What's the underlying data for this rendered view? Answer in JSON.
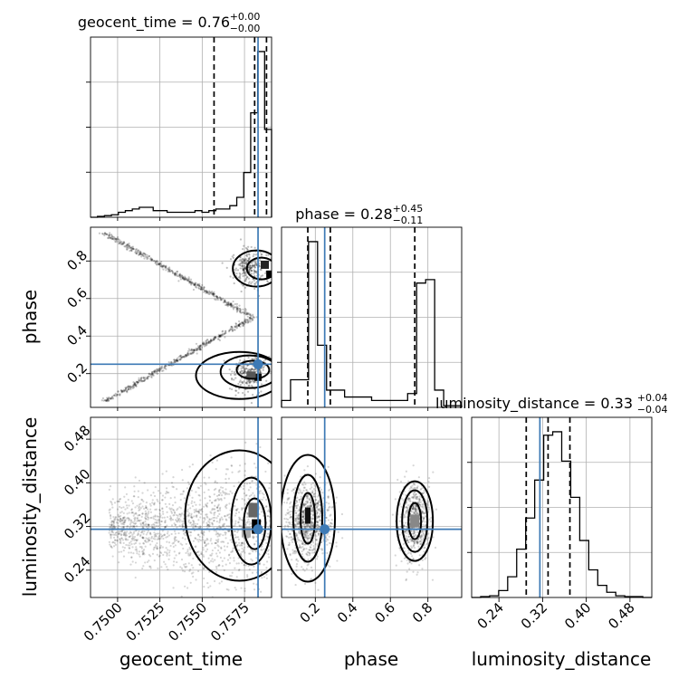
{
  "chart_data": {
    "type": "corner",
    "parameters": [
      "geocent_time",
      "phase",
      "luminosity_distance"
    ],
    "truths": {
      "geocent_time": 0.7583,
      "phase": 0.25,
      "luminosity_distance": 0.315
    },
    "axes": {
      "geocent_time": {
        "lim": [
          0.7484,
          0.7591
        ],
        "ticks": [
          "0.7500",
          "0.7525",
          "0.7550",
          "0.7575"
        ],
        "tick_values": [
          0.75,
          0.7525,
          0.755,
          0.7575
        ]
      },
      "phase": {
        "lim": [
          0.02,
          0.98
        ],
        "ticks": [
          "0.2",
          "0.4",
          "0.6",
          "0.8"
        ],
        "tick_values": [
          0.2,
          0.4,
          0.6,
          0.8
        ]
      },
      "luminosity_distance": {
        "lim": [
          0.19,
          0.52
        ],
        "ticks": [
          "0.24",
          "0.32",
          "0.40",
          "0.48"
        ],
        "tick_values": [
          0.24,
          0.32,
          0.4,
          0.48
        ]
      }
    },
    "titles": [
      {
        "param": "geocent_time",
        "text": "geocent_time = 0.76",
        "plus": "+0.00",
        "minus": "−0.00"
      },
      {
        "param": "phase",
        "text": "phase = 0.28",
        "plus": "+0.45",
        "minus": "−0.11"
      },
      {
        "param": "luminosity_distance",
        "text": "luminosity_distance = 0.33",
        "plus": "+0.04",
        "minus": "−0.04"
      }
    ],
    "histograms": {
      "geocent_time": {
        "edges_lim": [
          0.7484,
          0.7591
        ],
        "counts": [
          0,
          0.5,
          1,
          1.5,
          3,
          4,
          5,
          6,
          6,
          4,
          4,
          3,
          3,
          3,
          3,
          4,
          3,
          4,
          5,
          5,
          7,
          12,
          27,
          63,
          100,
          53
        ],
        "quantiles": [
          0.7557,
          0.7581,
          0.7588
        ]
      },
      "phase": {
        "edges_lim": [
          0.02,
          0.98
        ],
        "counts": [
          2,
          8,
          8,
          48,
          18,
          5,
          5,
          3,
          3,
          3,
          2,
          2,
          2,
          2,
          4,
          36,
          37,
          5,
          0.5,
          0.5
        ],
        "quantiles": [
          0.16,
          0.28,
          0.73
        ]
      },
      "luminosity_distance": {
        "edges_lim": [
          0.19,
          0.52
        ],
        "counts": [
          0,
          0.5,
          1,
          4,
          12,
          28,
          46,
          68,
          94,
          96,
          79,
          58,
          33,
          16,
          7,
          3,
          1,
          0.5,
          0.5,
          0
        ],
        "quantiles": [
          0.29,
          0.33,
          0.37
        ]
      }
    },
    "grid": true,
    "ticks_y_hist": [
      1,
      2,
      3
    ]
  }
}
